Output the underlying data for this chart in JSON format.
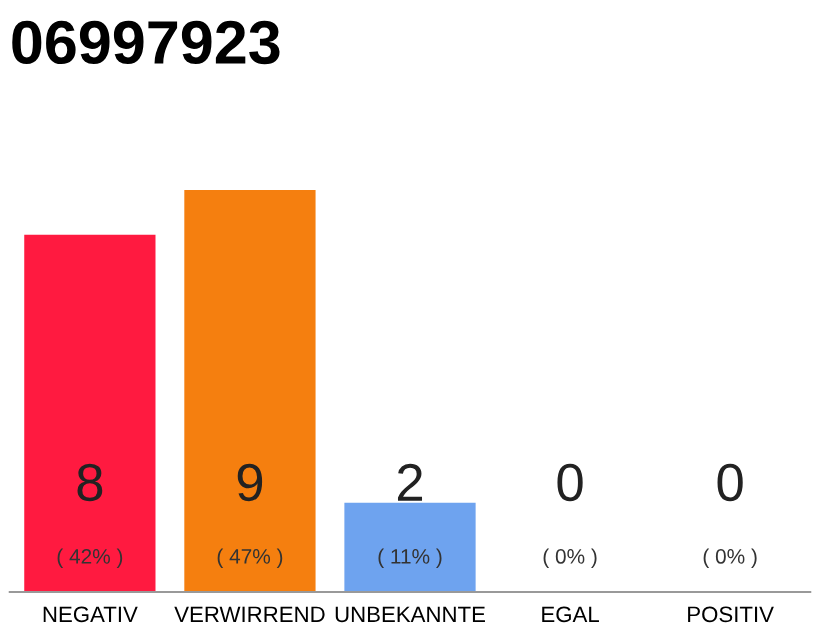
{
  "chart_data": {
    "type": "bar",
    "title": "06997923",
    "categories": [
      "NEGATIV",
      "VERWIRREND",
      "UNBEKANNTE",
      "EGAL",
      "POSITIV"
    ],
    "values": [
      8,
      9,
      2,
      0,
      0
    ],
    "colors": [
      "#ff1a40",
      "#f57f0f",
      "#6ea3ef",
      "#bbbbbb",
      "#bbbbbb"
    ],
    "data_labels": true,
    "annotations": [
      {
        "text": "( 42% )",
        "x": "NEGATIV",
        "y": 0
      },
      {
        "text": "( 47% )",
        "x": "VERWIRREND",
        "y": 0
      },
      {
        "text": "( 11% )",
        "x": "UNBEKANNTE",
        "y": 0
      },
      {
        "text": "( 0% )",
        "x": "EGAL",
        "y": 0
      },
      {
        "text": "( 0% )",
        "x": "POSITIV",
        "y": 0
      }
    ],
    "tick_labels": "x",
    "grid": false,
    "legend": false
  }
}
